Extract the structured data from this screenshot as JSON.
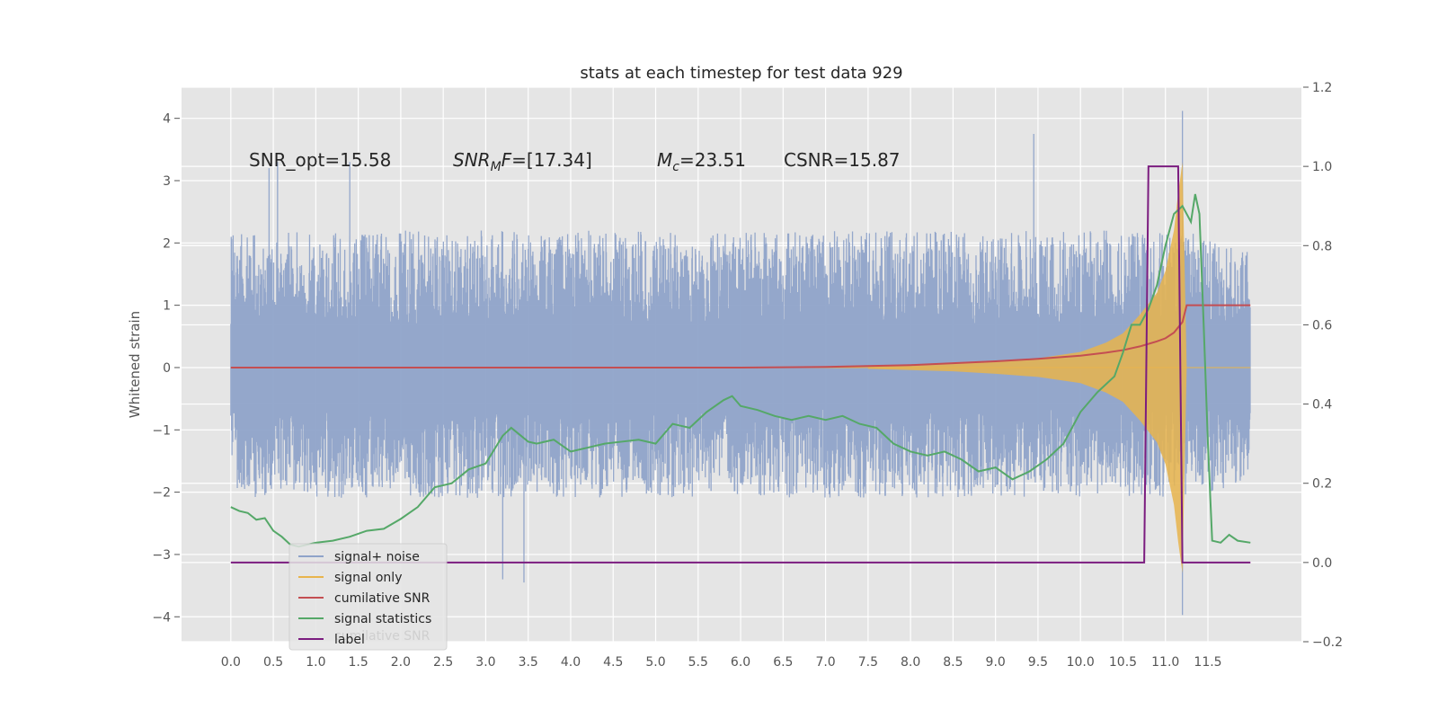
{
  "chart_data": {
    "type": "line",
    "title": "stats at each timestep for test data 929",
    "xlabel": "",
    "ylabel": "Whitened strain",
    "ylabel_right": "",
    "xlim": [
      -0.58,
      12.6
    ],
    "ylim": [
      -4.4,
      4.5
    ],
    "ylim_right": [
      -0.2,
      1.2
    ],
    "x_ticks": [
      "0.0",
      "0.5",
      "1.0",
      "1.5",
      "2.0",
      "2.5",
      "3.0",
      "3.5",
      "4.0",
      "4.5",
      "5.0",
      "5.5",
      "6.0",
      "6.5",
      "7.0",
      "7.5",
      "8.0",
      "8.5",
      "9.0",
      "9.5",
      "10.0",
      "10.5",
      "11.0",
      "11.5"
    ],
    "y_ticks": [
      "4",
      "3",
      "2",
      "1",
      "0",
      "−1",
      "−2",
      "−3",
      "−4"
    ],
    "y_ticks_right": [
      "1.2",
      "1.0",
      "0.8",
      "0.6",
      "0.4",
      "0.2",
      "0.0",
      "−0.2"
    ],
    "grid": true,
    "legend_placement": "lower-left",
    "annotations": {
      "snr_opt": "SNR_opt=15.58",
      "snr_mf_sym": "SNR",
      "snr_mf_sub": "M",
      "snr_mf_rest": "F=[17.34]",
      "mc_sym": "M",
      "mc_sub": "c",
      "mc_rest": "=23.51",
      "csnr": "CSNR=15.87"
    },
    "legend_ghost_text": "cumilative SNR",
    "series": [
      {
        "name": "signal+ noise",
        "color": "#8fa3c9",
        "axis": "left",
        "envelope_upper_typical": [
          [
            0,
            2.0
          ],
          [
            11.2,
            2.0
          ],
          [
            12.0,
            1.7
          ]
        ],
        "envelope_lower_typical": [
          [
            0,
            -1.9
          ],
          [
            11.2,
            -1.9
          ],
          [
            12.0,
            -1.7
          ]
        ],
        "peaks": [
          [
            0.45,
            3.2
          ],
          [
            0.55,
            3.3
          ],
          [
            1.4,
            3.3
          ],
          [
            9.45,
            3.75
          ],
          [
            11.2,
            4.12
          ],
          [
            3.2,
            -3.4
          ],
          [
            3.45,
            -3.45
          ],
          [
            11.2,
            -3.97
          ]
        ]
      },
      {
        "name": "signal only",
        "color": "#e8b44c",
        "axis": "left",
        "envelope": [
          [
            7.5,
            0.02
          ],
          [
            8.0,
            0.04
          ],
          [
            8.5,
            0.06
          ],
          [
            9.0,
            0.1
          ],
          [
            9.5,
            0.15
          ],
          [
            10.0,
            0.25
          ],
          [
            10.3,
            0.4
          ],
          [
            10.5,
            0.55
          ],
          [
            10.7,
            0.85
          ],
          [
            10.9,
            1.2
          ],
          [
            11.0,
            1.55
          ],
          [
            11.1,
            2.2
          ],
          [
            11.15,
            2.8
          ],
          [
            11.2,
            3.3
          ],
          [
            11.25,
            0
          ]
        ]
      },
      {
        "name": "cumilative SNR",
        "color": "#c44e52",
        "axis": "left",
        "points": [
          [
            0,
            0
          ],
          [
            6.0,
            0
          ],
          [
            7.0,
            0.01
          ],
          [
            8.0,
            0.04
          ],
          [
            9.0,
            0.1
          ],
          [
            9.5,
            0.14
          ],
          [
            10.0,
            0.19
          ],
          [
            10.3,
            0.24
          ],
          [
            10.5,
            0.28
          ],
          [
            10.7,
            0.34
          ],
          [
            10.9,
            0.42
          ],
          [
            11.0,
            0.47
          ],
          [
            11.1,
            0.56
          ],
          [
            11.2,
            0.73
          ],
          [
            11.25,
            1.0
          ],
          [
            12.0,
            1.0
          ]
        ]
      },
      {
        "name": "signal statistics",
        "color": "#55a868",
        "axis": "right",
        "points": [
          [
            0,
            0.14
          ],
          [
            0.1,
            0.13
          ],
          [
            0.2,
            0.125
          ],
          [
            0.3,
            0.108
          ],
          [
            0.4,
            0.112
          ],
          [
            0.5,
            0.08
          ],
          [
            0.6,
            0.065
          ],
          [
            0.7,
            0.045
          ],
          [
            0.8,
            0.04
          ],
          [
            0.9,
            0.045
          ],
          [
            1.0,
            0.05
          ],
          [
            1.2,
            0.055
          ],
          [
            1.4,
            0.065
          ],
          [
            1.6,
            0.08
          ],
          [
            1.8,
            0.085
          ],
          [
            2.0,
            0.11
          ],
          [
            2.2,
            0.14
          ],
          [
            2.4,
            0.19
          ],
          [
            2.6,
            0.2
          ],
          [
            2.8,
            0.235
          ],
          [
            3.0,
            0.25
          ],
          [
            3.2,
            0.32
          ],
          [
            3.3,
            0.34
          ],
          [
            3.5,
            0.305
          ],
          [
            3.6,
            0.3
          ],
          [
            3.8,
            0.31
          ],
          [
            4.0,
            0.28
          ],
          [
            4.2,
            0.29
          ],
          [
            4.4,
            0.3
          ],
          [
            4.6,
            0.305
          ],
          [
            4.8,
            0.31
          ],
          [
            5.0,
            0.3
          ],
          [
            5.2,
            0.35
          ],
          [
            5.4,
            0.34
          ],
          [
            5.6,
            0.38
          ],
          [
            5.8,
            0.41
          ],
          [
            5.9,
            0.42
          ],
          [
            6.0,
            0.395
          ],
          [
            6.2,
            0.385
          ],
          [
            6.4,
            0.37
          ],
          [
            6.6,
            0.36
          ],
          [
            6.8,
            0.37
          ],
          [
            7.0,
            0.36
          ],
          [
            7.2,
            0.37
          ],
          [
            7.4,
            0.35
          ],
          [
            7.6,
            0.34
          ],
          [
            7.8,
            0.3
          ],
          [
            8.0,
            0.28
          ],
          [
            8.2,
            0.27
          ],
          [
            8.4,
            0.28
          ],
          [
            8.6,
            0.26
          ],
          [
            8.8,
            0.23
          ],
          [
            9.0,
            0.24
          ],
          [
            9.2,
            0.21
          ],
          [
            9.4,
            0.23
          ],
          [
            9.6,
            0.26
          ],
          [
            9.8,
            0.3
          ],
          [
            10.0,
            0.38
          ],
          [
            10.2,
            0.43
          ],
          [
            10.4,
            0.47
          ],
          [
            10.5,
            0.53
          ],
          [
            10.6,
            0.6
          ],
          [
            10.7,
            0.6
          ],
          [
            10.8,
            0.64
          ],
          [
            10.9,
            0.7
          ],
          [
            11.0,
            0.8
          ],
          [
            11.1,
            0.88
          ],
          [
            11.2,
            0.9
          ],
          [
            11.3,
            0.86
          ],
          [
            11.35,
            0.93
          ],
          [
            11.4,
            0.88
          ],
          [
            11.45,
            0.6
          ],
          [
            11.5,
            0.3
          ],
          [
            11.55,
            0.055
          ],
          [
            11.65,
            0.05
          ],
          [
            11.75,
            0.07
          ],
          [
            11.85,
            0.055
          ],
          [
            12.0,
            0.05
          ]
        ]
      },
      {
        "name": "label",
        "color": "#7b1c7f",
        "axis": "right",
        "points": [
          [
            0,
            0.0
          ],
          [
            10.75,
            0.0
          ],
          [
            10.8,
            1.0
          ],
          [
            11.15,
            1.0
          ],
          [
            11.2,
            0.0
          ],
          [
            12.0,
            0.0
          ]
        ]
      }
    ]
  }
}
